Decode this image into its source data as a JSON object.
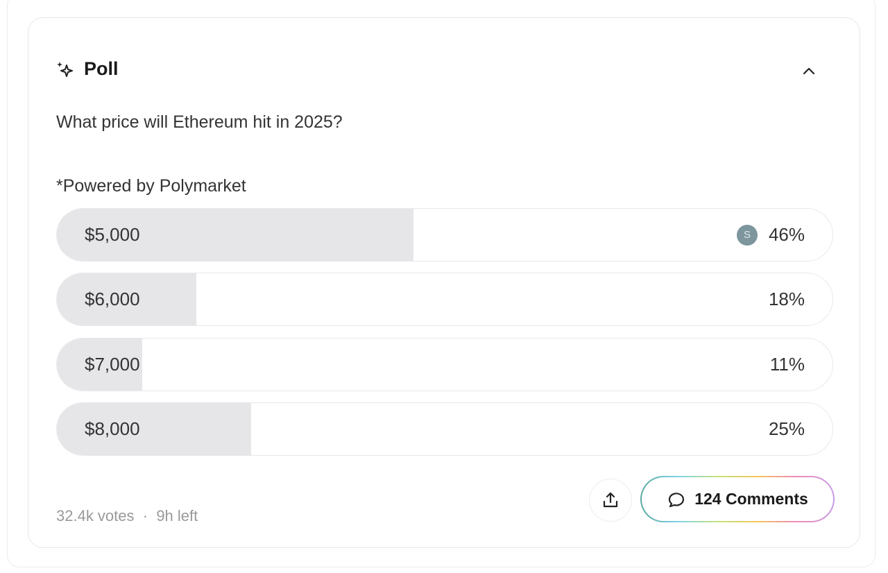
{
  "poll": {
    "title": "Poll",
    "question": "What price will Ethereum hit in 2025?",
    "powered_by": "*Powered by Polymarket",
    "options": [
      {
        "label": "$5,000",
        "percent_text": "46%",
        "percent": 46,
        "avatar": "S"
      },
      {
        "label": "$6,000",
        "percent_text": "18%",
        "percent": 18
      },
      {
        "label": "$7,000",
        "percent_text": "11%",
        "percent": 11
      },
      {
        "label": "$8,000",
        "percent_text": "25%",
        "percent": 25
      }
    ],
    "votes": "32.4k votes",
    "separator": "·",
    "time_left": "9h left",
    "comments_label": "124 Comments"
  },
  "colors": {
    "fill": "#e6e6e9",
    "avatar": "#7d959d"
  }
}
